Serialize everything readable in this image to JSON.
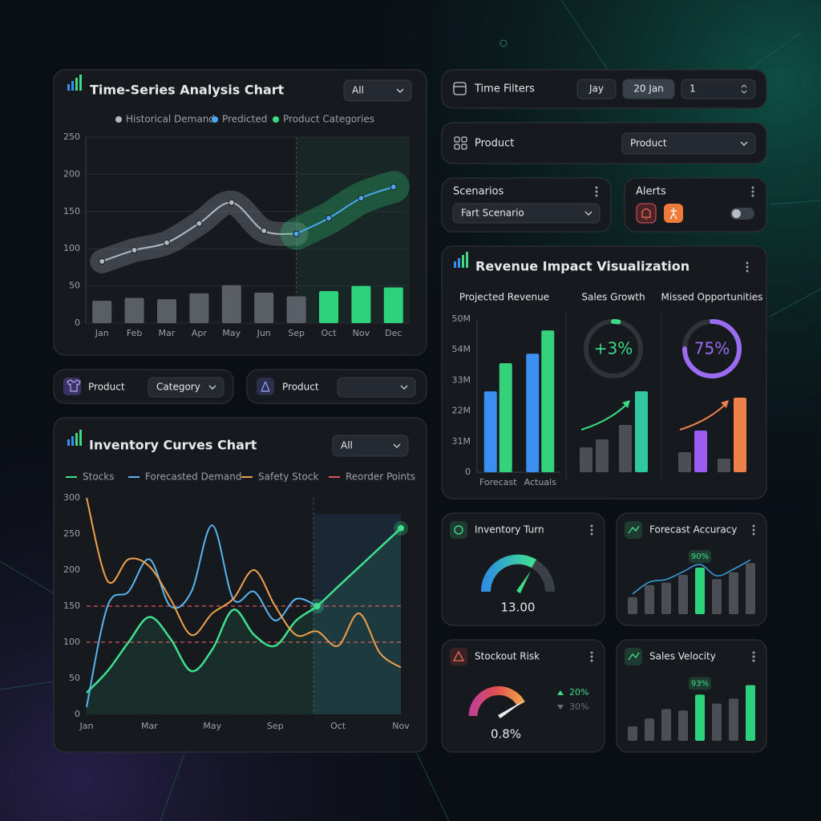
{
  "chart_data": [
    {
      "type": "line",
      "title": "Time-Series Analysis Chart",
      "dropdown": "All",
      "categories": [
        "Jan",
        "Feb",
        "Mar",
        "Apr",
        "May",
        "Jun",
        "Sep",
        "Oct",
        "Nov",
        "Dec"
      ],
      "series": [
        {
          "name": "Historical Demand",
          "color": "#b4b9bf",
          "values": [
            83,
            98,
            108,
            134,
            162,
            124,
            120,
            null,
            null,
            null
          ]
        },
        {
          "name": "Predicted",
          "color": "#4aa8f0",
          "values": [
            null,
            null,
            null,
            null,
            null,
            null,
            120,
            141,
            168,
            183
          ]
        },
        {
          "name": "Product Categories",
          "type": "bar",
          "color": "#3ddc84",
          "colors": [
            "#5a5f66",
            "#5a5f66",
            "#5a5f66",
            "#5a5f66",
            "#5a5f66",
            "#5a5f66",
            "#5a5f66",
            "#2fd27c",
            "#2fd27c",
            "#2fd27c"
          ],
          "values": [
            30,
            34,
            32,
            40,
            51,
            41,
            36,
            43,
            50,
            48
          ]
        }
      ],
      "ylim": [
        0,
        250
      ],
      "yticks": [
        0,
        50,
        100,
        150,
        200,
        250
      ],
      "grid": true
    },
    {
      "type": "line",
      "title": "Inventory Curves Chart",
      "dropdown": "All",
      "categories": [
        "Jan",
        null,
        null,
        "Mar",
        null,
        null,
        "May",
        null,
        null,
        "Sep",
        null,
        null,
        "Oct",
        null,
        null,
        "Nov"
      ],
      "series": [
        {
          "name": "Stocks",
          "color": "#3ee08f",
          "values": [
            30,
            60,
            100,
            135,
            105,
            60,
            90,
            145,
            110,
            95,
            130,
            150,
            177,
            204,
            231,
            258
          ]
        },
        {
          "name": "Forecasted Demand",
          "color": "#5ab4f0",
          "values": [
            10,
            150,
            170,
            215,
            150,
            170,
            262,
            160,
            170,
            130,
            160,
            150,
            null,
            null,
            null,
            null
          ]
        },
        {
          "name": "Safety Stock",
          "color": "#f0a04a",
          "values": [
            300,
            185,
            215,
            205,
            160,
            110,
            140,
            160,
            200,
            150,
            110,
            115,
            95,
            140,
            85,
            65
          ]
        }
      ],
      "reference_lines": {
        "name": "Reorder Points",
        "color": "#e0525f",
        "values": [
          150,
          100
        ]
      },
      "ylim": [
        0,
        300
      ],
      "yticks": [
        0,
        50,
        100,
        150,
        200,
        250,
        300
      ],
      "grid": false
    },
    {
      "type": "bar",
      "title": "Projected Revenue",
      "categories": [
        "Forecast",
        "Actuals"
      ],
      "series": [
        {
          "color": "#3a8ff0",
          "values": [
            26.4,
            38.7
          ]
        },
        {
          "color": "#34d27a",
          "values": [
            35.6,
            46.3
          ]
        }
      ],
      "ylim": [
        0,
        50
      ],
      "yticks": [
        0,
        {
          "value": 10,
          "label": "31M"
        },
        {
          "value": 20,
          "label": "22M"
        },
        {
          "value": 30,
          "label": "33M"
        },
        {
          "value": 40,
          "label": "54M"
        },
        {
          "value": 50,
          "label": "50M"
        }
      ]
    },
    {
      "type": "donut",
      "title": "Sales Growth",
      "value": 3,
      "value_label": "+3%",
      "color": "#3ddc84",
      "bars": {
        "values": [
          31,
          41,
          59,
          101
        ],
        "colors": [
          "#4a4f55",
          "#4a4f55",
          "#4a4f55",
          "#2fc8a0"
        ]
      }
    },
    {
      "type": "donut",
      "title": "Missed Opportunities",
      "value": 75,
      "value_label": "75%",
      "color": "#9b6cf0",
      "bars": {
        "values": [
          25,
          52,
          17,
          93
        ],
        "colors": [
          "#4a4f55",
          "#9b5cf0",
          "#4a4f55",
          "#f0804a"
        ]
      }
    },
    {
      "type": "gauge",
      "title": "Inventory Turn",
      "value": 13,
      "value_label": "13.00"
    },
    {
      "type": "bar",
      "title": "Forecast Accuracy",
      "values": [
        33,
        56,
        61,
        76,
        90,
        68,
        81,
        99
      ],
      "value_labels": [
        null,
        null,
        null,
        null,
        "90%",
        null,
        null,
        null
      ],
      "colors": [
        "#4a4f55",
        "#4a4f55",
        "#4a4f55",
        "#4a4f55",
        "#2fd27c",
        "#4a4f55",
        "#4a4f55",
        "#4a4f55"
      ]
    },
    {
      "type": "gauge",
      "title": "Stockout Risk",
      "value": 0.8,
      "value_label": "0.8%",
      "changes": [
        {
          "value": 20,
          "label": "20%"
        },
        {
          "value": 30,
          "label": "30%"
        }
      ]
    },
    {
      "type": "bar",
      "title": "Sales Velocity",
      "values": [
        29,
        45,
        64,
        61,
        93,
        75,
        85,
        112
      ],
      "value_labels": [
        null,
        null,
        null,
        null,
        "93%",
        null,
        null,
        null
      ],
      "colors": [
        "#4a4f55",
        "#4a4f55",
        "#4a4f55",
        "#4a4f55",
        "#2fd27c",
        "#4a4f55",
        "#4a4f55",
        "#2fd27c"
      ]
    }
  ],
  "revenue_panel": {
    "title": "Revenue Impact Visualization"
  },
  "filters": {
    "time": {
      "title": "Time Filters",
      "options": [
        "Jay",
        "20 Jan",
        "1"
      ]
    },
    "product": {
      "title": "Product",
      "select": "Product"
    },
    "scenarios": {
      "title": "Scenarios",
      "select": "Fart Scenario"
    },
    "alerts": {
      "title": "Alerts"
    },
    "product_category": {
      "title": "Product",
      "select": "Category"
    },
    "product_second": {
      "title": "Product"
    }
  }
}
